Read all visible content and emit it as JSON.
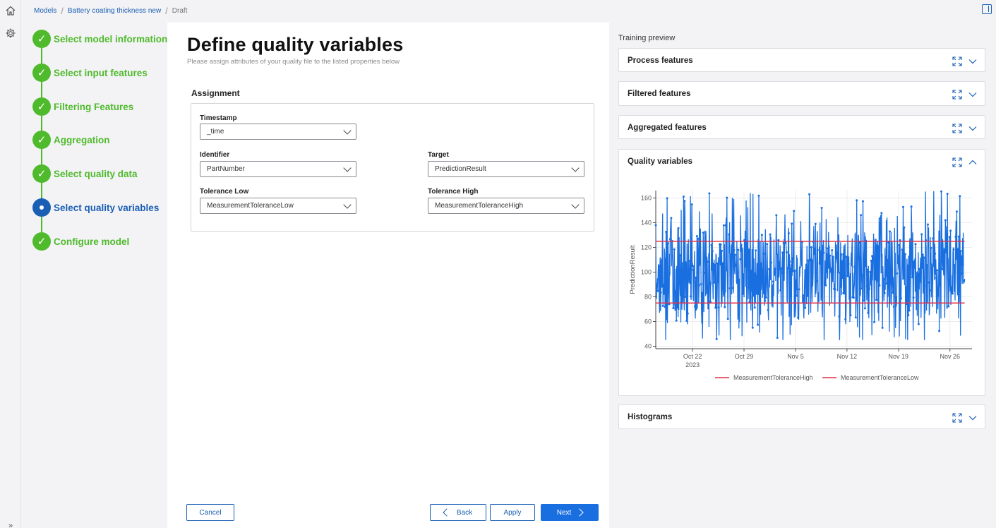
{
  "breadcrumb": {
    "items": [
      "Models",
      "Battery coating thickness new"
    ],
    "current": "Draft"
  },
  "stepper": {
    "steps": [
      {
        "label": "Select model information",
        "state": "done"
      },
      {
        "label": "Select input features",
        "state": "done"
      },
      {
        "label": "Filtering Features",
        "state": "done"
      },
      {
        "label": "Aggregation",
        "state": "done"
      },
      {
        "label": "Select quality data",
        "state": "done"
      },
      {
        "label": "Select quality variables",
        "state": "active"
      },
      {
        "label": "Configure model",
        "state": "done"
      }
    ]
  },
  "main": {
    "title": "Define quality variables",
    "subtitle": "Please assign attributes of your quality file to the listed properties below",
    "assignment_title": "Assignment",
    "fields": {
      "timestamp": {
        "label": "Timestamp",
        "value": "_time"
      },
      "identifier": {
        "label": "Identifier",
        "value": "PartNumber"
      },
      "target": {
        "label": "Target",
        "value": "PredictionResult"
      },
      "tolerance_low": {
        "label": "Tolerance Low",
        "value": "MeasurementToleranceLow"
      },
      "tolerance_high": {
        "label": "Tolerance High",
        "value": "MeasurementToleranceHigh"
      }
    },
    "buttons": {
      "cancel": "Cancel",
      "back": "Back",
      "apply": "Apply",
      "next": "Next"
    }
  },
  "preview": {
    "title": "Training preview",
    "cards": {
      "process": "Process features",
      "filtered": "Filtered features",
      "aggregated": "Aggregated features",
      "quality": "Quality variables",
      "histograms": "Histograms"
    }
  },
  "colors": {
    "accent": "#1a5fb4",
    "success": "#4fba2c",
    "series": "#1a6fe0",
    "tolerance": "#e0304a"
  },
  "chart_data": {
    "type": "line",
    "title": "",
    "xlabel": "",
    "ylabel": "PredictionResult",
    "ylim": [
      38,
      166
    ],
    "yticks": [
      40,
      60,
      80,
      100,
      120,
      140,
      160
    ],
    "xlim": [
      "2023-10-17",
      "2023-11-29"
    ],
    "xticks": [
      {
        "date": "2023-10-22",
        "label": "Oct 22",
        "sublabel": "2023"
      },
      {
        "date": "2023-10-29",
        "label": "Oct 29",
        "sublabel": ""
      },
      {
        "date": "2023-11-05",
        "label": "Nov 5",
        "sublabel": ""
      },
      {
        "date": "2023-11-12",
        "label": "Nov 12",
        "sublabel": ""
      },
      {
        "date": "2023-11-19",
        "label": "Nov 19",
        "sublabel": ""
      },
      {
        "date": "2023-11-26",
        "label": "Nov 26",
        "sublabel": ""
      }
    ],
    "grid": true,
    "legend_position": "bottom",
    "series": [
      {
        "name": "PredictionResult",
        "start": "2023-10-17",
        "end": "2023-11-28",
        "approx_points": 900,
        "mean": 100,
        "min": 45,
        "max": 166,
        "start_value": 138,
        "color": "#1a6fe0"
      },
      {
        "name": "MeasurementToleranceHigh",
        "value": 125,
        "color": "#e0304a"
      },
      {
        "name": "MeasurementToleranceLow",
        "value": 75,
        "color": "#e0304a"
      }
    ],
    "legend": [
      "MeasurementToleranceHigh",
      "MeasurementToleranceLow"
    ]
  }
}
